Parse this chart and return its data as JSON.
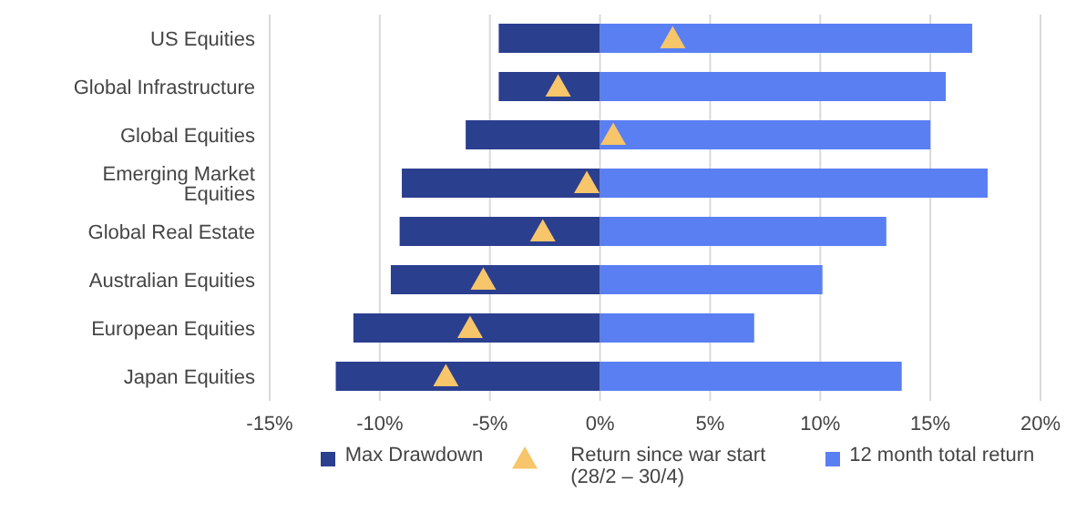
{
  "chart_data": {
    "type": "bar",
    "orientation": "horizontal",
    "stacked": true,
    "categories": [
      "US Equities",
      "Global Infrastructure",
      "Global Equities",
      "Emerging Market Equities",
      "Global Real Estate",
      "Australian Equities",
      "European Equities",
      "Japan Equities"
    ],
    "series": [
      {
        "name": "Max Drawdown",
        "color": "#2b3f8f",
        "values": [
          -4.6,
          -4.6,
          -6.1,
          -9.0,
          -9.1,
          -9.5,
          -11.2,
          -12.0
        ]
      },
      {
        "name": "Return since war start (28/2 – 30/4)",
        "type": "scatter",
        "marker": "triangle",
        "color": "#f7c56a",
        "values": [
          3.3,
          -1.9,
          0.6,
          -0.6,
          -2.6,
          -5.3,
          -5.9,
          -7.0
        ]
      },
      {
        "name": "12 month total return",
        "color": "#5a7ff2",
        "values": [
          16.9,
          15.7,
          15.0,
          17.6,
          13.0,
          10.1,
          7.0,
          13.7
        ]
      }
    ],
    "xlim": [
      -15,
      20
    ],
    "xticks": [
      {
        "value": -15,
        "label": "-15%"
      },
      {
        "value": -10,
        "label": "-10%"
      },
      {
        "value": -5,
        "label": "-5%"
      },
      {
        "value": 0,
        "label": "0%"
      },
      {
        "value": 5,
        "label": "5%"
      },
      {
        "value": 10,
        "label": "10%"
      },
      {
        "value": 15,
        "label": "15%"
      },
      {
        "value": 20,
        "label": "20%"
      }
    ],
    "grid": "x",
    "legend": "bottom"
  }
}
